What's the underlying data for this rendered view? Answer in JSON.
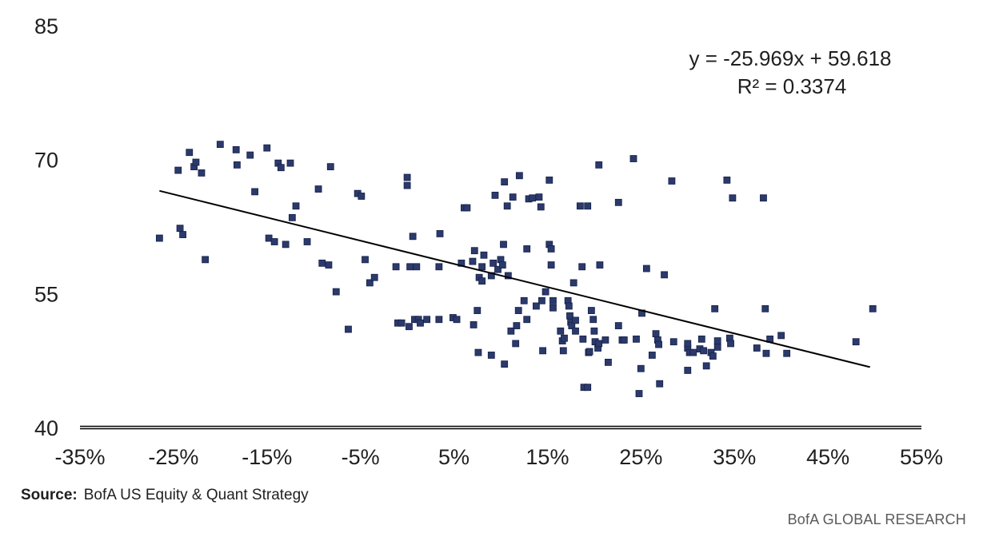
{
  "chart_data": {
    "type": "scatter",
    "title": "",
    "xlabel": "",
    "ylabel": "",
    "xlim": [
      -0.35,
      0.55
    ],
    "ylim": [
      40,
      85
    ],
    "x_ticks": [
      -0.35,
      -0.25,
      -0.15,
      -0.05,
      0.05,
      0.15,
      0.25,
      0.35,
      0.45,
      0.55
    ],
    "x_tick_labels": [
      "-35%",
      "-25%",
      "-15%",
      "-5%",
      "5%",
      "15%",
      "25%",
      "35%",
      "45%",
      "55%"
    ],
    "y_ticks": [
      40,
      55,
      70,
      85
    ],
    "y_tick_labels": [
      "40",
      "55",
      "70",
      "85"
    ],
    "grid": false,
    "legend": "none",
    "marker_color": "#2b3a6b",
    "trendline_color": "#000000",
    "trendline": {
      "slope": -25.969,
      "intercept": 59.618,
      "x_range": [
        -0.265,
        0.495
      ],
      "equation_label": "y = -25.969x + 59.618",
      "r2_label": "R² = 0.3374"
    },
    "points": [
      [
        -0.265,
        61.2
      ],
      [
        -0.245,
        68.8
      ],
      [
        -0.243,
        62.3
      ],
      [
        -0.24,
        61.6
      ],
      [
        -0.233,
        70.8
      ],
      [
        -0.228,
        69.2
      ],
      [
        -0.226,
        69.7
      ],
      [
        -0.22,
        68.5
      ],
      [
        -0.216,
        58.8
      ],
      [
        -0.2,
        71.7
      ],
      [
        -0.183,
        71.1
      ],
      [
        -0.182,
        69.4
      ],
      [
        -0.168,
        70.5
      ],
      [
        -0.163,
        66.4
      ],
      [
        -0.15,
        71.3
      ],
      [
        -0.148,
        61.2
      ],
      [
        -0.142,
        60.8
      ],
      [
        -0.138,
        69.6
      ],
      [
        -0.135,
        69.1
      ],
      [
        -0.13,
        60.5
      ],
      [
        -0.125,
        69.6
      ],
      [
        -0.123,
        63.5
      ],
      [
        -0.119,
        64.8
      ],
      [
        -0.107,
        60.8
      ],
      [
        -0.095,
        66.7
      ],
      [
        -0.091,
        58.4
      ],
      [
        -0.084,
        58.2
      ],
      [
        -0.082,
        69.2
      ],
      [
        -0.076,
        55.2
      ],
      [
        -0.063,
        51.0
      ],
      [
        -0.053,
        66.2
      ],
      [
        -0.049,
        65.9
      ],
      [
        -0.045,
        58.8
      ],
      [
        -0.04,
        56.2
      ],
      [
        -0.035,
        56.8
      ],
      [
        -0.012,
        58.0
      ],
      [
        -0.01,
        51.7
      ],
      [
        -0.006,
        51.7
      ],
      [
        0.0,
        67.1
      ],
      [
        0.0,
        68.0
      ],
      [
        0.002,
        51.3
      ],
      [
        0.003,
        58.0
      ],
      [
        0.006,
        61.4
      ],
      [
        0.008,
        52.1
      ],
      [
        0.01,
        58.0
      ],
      [
        0.012,
        52.1
      ],
      [
        0.014,
        51.7
      ],
      [
        0.021,
        52.1
      ],
      [
        0.035,
        61.7
      ],
      [
        0.034,
        52.1
      ],
      [
        0.034,
        58.0
      ],
      [
        0.049,
        52.3
      ],
      [
        0.053,
        52.1
      ],
      [
        0.058,
        58.4
      ],
      [
        0.061,
        64.6
      ],
      [
        0.064,
        64.6
      ],
      [
        0.07,
        58.6
      ],
      [
        0.071,
        51.5
      ],
      [
        0.072,
        59.8
      ],
      [
        0.075,
        53.1
      ],
      [
        0.076,
        48.4
      ],
      [
        0.077,
        56.8
      ],
      [
        0.08,
        58.0
      ],
      [
        0.08,
        56.4
      ],
      [
        0.082,
        59.3
      ],
      [
        0.09,
        48.1
      ],
      [
        0.09,
        57.0
      ],
      [
        0.092,
        58.4
      ],
      [
        0.094,
        66.0
      ],
      [
        0.097,
        57.7
      ],
      [
        0.1,
        58.8
      ],
      [
        0.102,
        58.2
      ],
      [
        0.103,
        60.5
      ],
      [
        0.104,
        67.5
      ],
      [
        0.104,
        47.1
      ],
      [
        0.107,
        64.8
      ],
      [
        0.108,
        57.0
      ],
      [
        0.111,
        50.8
      ],
      [
        0.113,
        65.8
      ],
      [
        0.116,
        49.4
      ],
      [
        0.117,
        51.4
      ],
      [
        0.119,
        53.1
      ],
      [
        0.12,
        68.2
      ],
      [
        0.125,
        54.2
      ],
      [
        0.128,
        52.1
      ],
      [
        0.128,
        60.0
      ],
      [
        0.13,
        65.6
      ],
      [
        0.134,
        65.7
      ],
      [
        0.138,
        53.6
      ],
      [
        0.141,
        65.8
      ],
      [
        0.143,
        64.7
      ],
      [
        0.144,
        54.2
      ],
      [
        0.145,
        48.6
      ],
      [
        0.148,
        55.2
      ],
      [
        0.152,
        67.7
      ],
      [
        0.152,
        60.5
      ],
      [
        0.154,
        60.0
      ],
      [
        0.154,
        58.2
      ],
      [
        0.156,
        53.4
      ],
      [
        0.156,
        54.2
      ],
      [
        0.164,
        50.8
      ],
      [
        0.166,
        49.7
      ],
      [
        0.167,
        48.6
      ],
      [
        0.168,
        50.0
      ],
      [
        0.172,
        54.2
      ],
      [
        0.173,
        53.6
      ],
      [
        0.174,
        52.5
      ],
      [
        0.175,
        51.8
      ],
      [
        0.176,
        51.4
      ],
      [
        0.178,
        56.2
      ],
      [
        0.18,
        52.0
      ],
      [
        0.18,
        50.8
      ],
      [
        0.185,
        64.8
      ],
      [
        0.187,
        58.0
      ],
      [
        0.188,
        49.9
      ],
      [
        0.189,
        44.5
      ],
      [
        0.193,
        44.5
      ],
      [
        0.193,
        64.8
      ],
      [
        0.194,
        48.4
      ],
      [
        0.195,
        48.5
      ],
      [
        0.197,
        53.1
      ],
      [
        0.199,
        52.1
      ],
      [
        0.2,
        50.8
      ],
      [
        0.201,
        49.6
      ],
      [
        0.204,
        48.9
      ],
      [
        0.205,
        69.4
      ],
      [
        0.205,
        49.4
      ],
      [
        0.206,
        58.2
      ],
      [
        0.212,
        49.8
      ],
      [
        0.215,
        47.3
      ],
      [
        0.226,
        65.2
      ],
      [
        0.226,
        51.4
      ],
      [
        0.23,
        49.8
      ],
      [
        0.232,
        49.8
      ],
      [
        0.242,
        70.1
      ],
      [
        0.245,
        49.9
      ],
      [
        0.248,
        43.8
      ],
      [
        0.25,
        46.6
      ],
      [
        0.251,
        52.8
      ],
      [
        0.256,
        57.8
      ],
      [
        0.262,
        48.1
      ],
      [
        0.266,
        50.5
      ],
      [
        0.268,
        49.8
      ],
      [
        0.269,
        49.3
      ],
      [
        0.27,
        44.9
      ],
      [
        0.275,
        57.1
      ],
      [
        0.283,
        67.6
      ],
      [
        0.285,
        49.6
      ],
      [
        0.3,
        46.4
      ],
      [
        0.3,
        48.9
      ],
      [
        0.3,
        49.4
      ],
      [
        0.302,
        48.4
      ],
      [
        0.306,
        48.4
      ],
      [
        0.313,
        48.8
      ],
      [
        0.315,
        49.9
      ],
      [
        0.317,
        48.6
      ],
      [
        0.32,
        46.9
      ],
      [
        0.325,
        48.4
      ],
      [
        0.327,
        48.0
      ],
      [
        0.329,
        53.3
      ],
      [
        0.332,
        49.7
      ],
      [
        0.332,
        49.0
      ],
      [
        0.342,
        67.7
      ],
      [
        0.345,
        50.0
      ],
      [
        0.346,
        49.4
      ],
      [
        0.348,
        65.7
      ],
      [
        0.374,
        48.9
      ],
      [
        0.381,
        65.7
      ],
      [
        0.383,
        53.3
      ],
      [
        0.384,
        48.3
      ],
      [
        0.388,
        49.9
      ],
      [
        0.4,
        50.3
      ],
      [
        0.406,
        48.3
      ],
      [
        0.48,
        49.6
      ],
      [
        0.498,
        53.3
      ]
    ]
  },
  "footer": {
    "source_label": "Source:",
    "source_text": "BofA US Equity & Quant Strategy",
    "brand": "BofA GLOBAL RESEARCH"
  }
}
